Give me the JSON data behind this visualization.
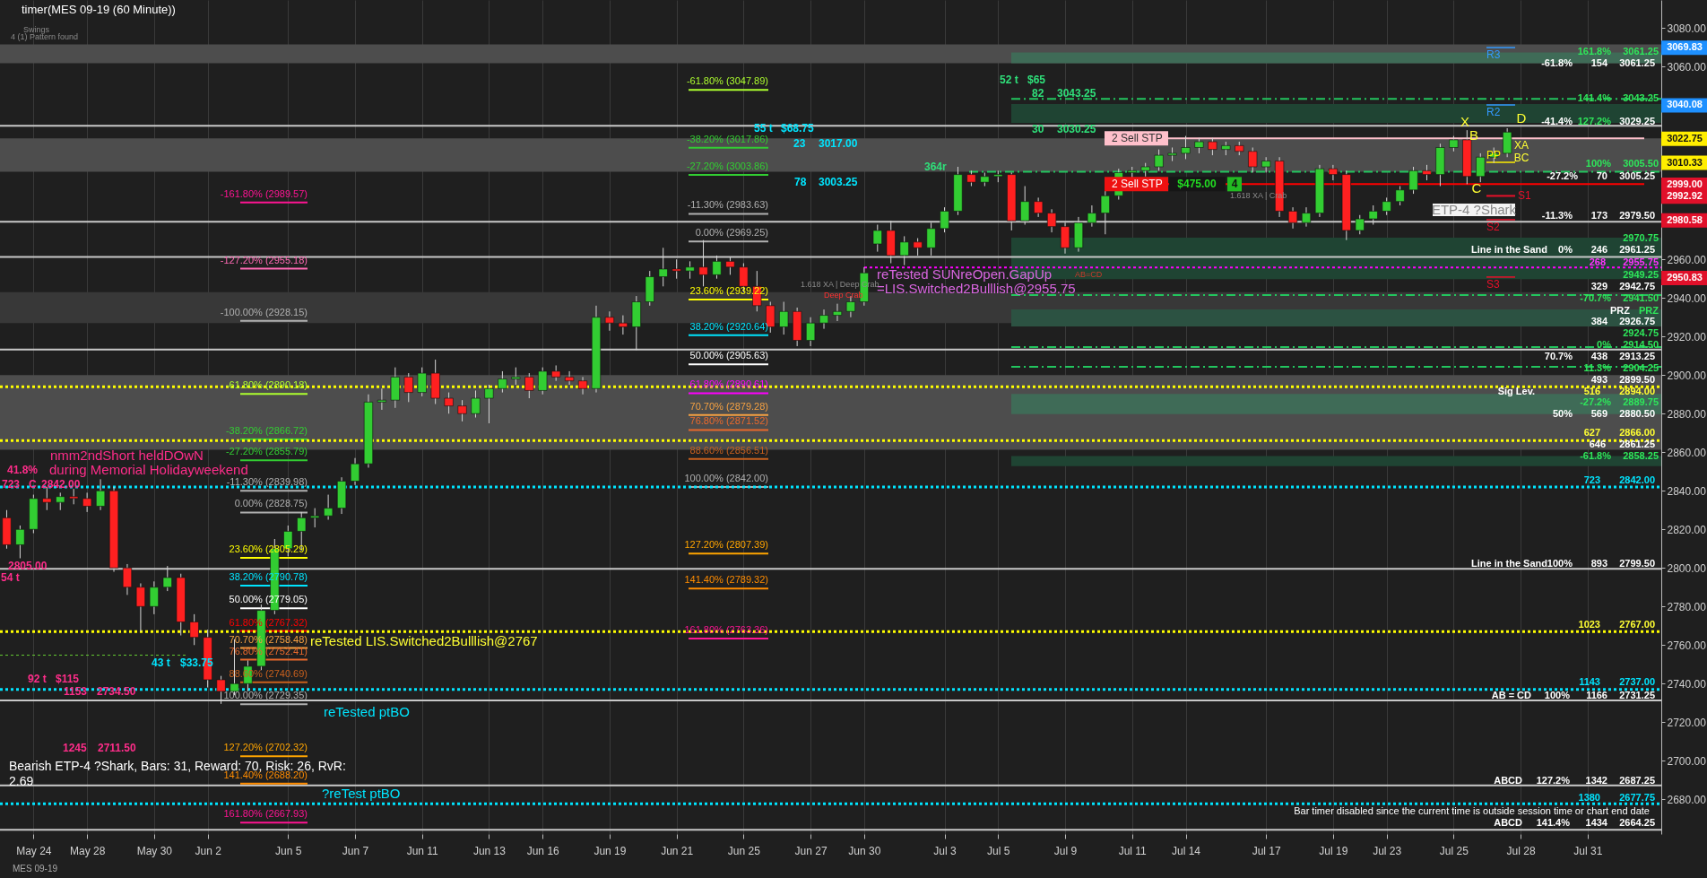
{
  "chart_data": {
    "type": "candlestick",
    "title": "timer(MES 09-19 (60 Minute))",
    "categories": [
      null,
      null,
      "May 24",
      null,
      null,
      null,
      "May 28",
      null,
      null,
      null,
      null,
      "May 30",
      null,
      null,
      null,
      "Jun 2",
      null,
      null,
      null,
      null,
      null,
      "Jun 5",
      null,
      null,
      null,
      null,
      "Jun 7",
      null,
      null,
      null,
      null,
      "Jun 11",
      null,
      null,
      null,
      null,
      "Jun 13",
      null,
      null,
      null,
      "Jun 16",
      null,
      null,
      null,
      null,
      "Jun 19",
      null,
      null,
      null,
      null,
      "Jun 21",
      null,
      null,
      null,
      null,
      "Jun 25",
      null,
      null,
      null,
      null,
      "Jun 27",
      null,
      null,
      null,
      "Jun 30",
      null,
      null,
      null,
      null,
      null,
      "Jul 3",
      null,
      null,
      null,
      "Jul 5",
      null,
      null,
      null,
      null,
      "Jul 9",
      null,
      null,
      null,
      null,
      "Jul 11",
      null,
      null,
      null,
      "Jul 14",
      null,
      null,
      null,
      null,
      null,
      "Jul 17",
      null,
      null,
      null,
      null,
      "Jul 19",
      null,
      null,
      null,
      "Jul 23",
      null,
      null,
      null,
      null,
      "Jul 25",
      null,
      null,
      null,
      null,
      "Jul 28",
      null,
      null,
      null,
      null,
      "Jul 31",
      null,
      null,
      null,
      null,
      null
    ],
    "ohlc": [
      [
        2826,
        2830,
        2810,
        2812
      ],
      [
        2812,
        2822,
        2805,
        2820
      ],
      [
        2820,
        2838,
        2818,
        2836
      ],
      [
        2836,
        2842,
        2830,
        2834
      ],
      [
        2834,
        2839,
        2830,
        2837
      ],
      [
        2837,
        2841,
        2833,
        2836
      ],
      [
        2836,
        2839,
        2829,
        2832
      ],
      [
        2832,
        2846,
        2830,
        2840
      ],
      [
        2840,
        2842,
        2798,
        2800
      ],
      [
        2800,
        2802,
        2786,
        2790
      ],
      [
        2790,
        2792,
        2767,
        2780
      ],
      [
        2780,
        2793,
        2776,
        2790
      ],
      [
        2790,
        2801,
        2788,
        2795
      ],
      [
        2795,
        2797,
        2765,
        2772
      ],
      [
        2772,
        2776,
        2760,
        2764
      ],
      [
        2764,
        2768,
        2738,
        2742
      ],
      [
        2742,
        2744,
        2729.5,
        2736
      ],
      [
        2736,
        2763,
        2734,
        2740
      ],
      [
        2740,
        2752,
        2736,
        2749
      ],
      [
        2749,
        2781,
        2747,
        2778
      ],
      [
        2778,
        2815,
        2776,
        2810
      ],
      [
        2810,
        2822,
        2806,
        2819
      ],
      [
        2819,
        2829,
        2809,
        2826
      ],
      [
        2826,
        2831,
        2821,
        2827
      ],
      [
        2827,
        2838,
        2825,
        2831
      ],
      [
        2831,
        2847,
        2828,
        2845
      ],
      [
        2845,
        2857,
        2843,
        2854
      ],
      [
        2854,
        2890,
        2852,
        2886
      ],
      [
        2886,
        2893,
        2882,
        2887
      ],
      [
        2887,
        2904,
        2883,
        2899
      ],
      [
        2899,
        2901,
        2886,
        2891
      ],
      [
        2891,
        2904,
        2889,
        2901
      ],
      [
        2901,
        2908,
        2885,
        2888
      ],
      [
        2888,
        2891,
        2880,
        2884
      ],
      [
        2884,
        2887,
        2876,
        2880
      ],
      [
        2880,
        2892,
        2878,
        2888
      ],
      [
        2888,
        2895,
        2875,
        2893
      ],
      [
        2893,
        2902,
        2891,
        2898
      ],
      [
        2898,
        2904,
        2895,
        2899
      ],
      [
        2899,
        2901,
        2888,
        2892
      ],
      [
        2892,
        2904,
        2890,
        2902
      ],
      [
        2902,
        2905,
        2897,
        2899
      ],
      [
        2899,
        2902,
        2895,
        2897
      ],
      [
        2897,
        2899,
        2890,
        2893
      ],
      [
        2893,
        2936,
        2891,
        2930
      ],
      [
        2930,
        2933,
        2923,
        2927
      ],
      [
        2927,
        2931,
        2921,
        2925
      ],
      [
        2925,
        2941,
        2913,
        2938
      ],
      [
        2938,
        2954,
        2936,
        2951
      ],
      [
        2951,
        2966,
        2946,
        2955
      ],
      [
        2955,
        2960,
        2950,
        2954
      ],
      [
        2954,
        2959,
        2950,
        2956
      ],
      [
        2956,
        2970,
        2946,
        2952
      ],
      [
        2952,
        2962,
        2950,
        2959
      ],
      [
        2959,
        2961,
        2952,
        2956
      ],
      [
        2956,
        2958,
        2943,
        2946
      ],
      [
        2946,
        2954,
        2933,
        2936
      ],
      [
        2936,
        2938,
        2922,
        2925
      ],
      [
        2925,
        2938,
        2921,
        2933
      ],
      [
        2933,
        2935,
        2915,
        2918
      ],
      [
        2918,
        2930,
        2915,
        2927
      ],
      [
        2927,
        2934,
        2924,
        2931
      ],
      [
        2931,
        2937,
        2928,
        2933
      ],
      [
        2933,
        2941,
        2930,
        2938
      ],
      [
        2938,
        2956,
        2936,
        2953
      ],
      [
        2968,
        2978,
        2964,
        2975
      ],
      [
        2975,
        2980,
        2958,
        2962
      ],
      [
        2962,
        2972,
        2957,
        2969
      ],
      [
        2969,
        2971,
        2962,
        2966
      ],
      [
        2966,
        2979,
        2962,
        2976
      ],
      [
        2976,
        2987,
        2974,
        2985
      ],
      [
        2985,
        3008,
        2983,
        3004
      ],
      [
        3004,
        3006,
        2998,
        3000
      ],
      [
        3000,
        3005,
        2998,
        3003
      ],
      [
        3003,
        3006,
        3000,
        3004
      ],
      [
        3004,
        3005,
        2975,
        2980
      ],
      [
        2980,
        2998,
        2978,
        2990
      ],
      [
        2990,
        2992,
        2982,
        2984
      ],
      [
        2984,
        2986,
        2974,
        2977
      ],
      [
        2977,
        2979,
        2963,
        2966
      ],
      [
        2966,
        2982,
        2964,
        2979
      ],
      [
        2979,
        2988,
        2977,
        2984
      ],
      [
        2984,
        2996,
        2973,
        2993
      ],
      [
        2993,
        3007,
        2991,
        3005
      ],
      [
        3005,
        3008,
        3002,
        3006
      ],
      [
        3006,
        3010,
        3003,
        3008
      ],
      [
        3008,
        3017,
        3006,
        3014
      ],
      [
        3014,
        3018,
        3011,
        3015
      ],
      [
        3015,
        3024,
        3012,
        3018
      ],
      [
        3018,
        3023,
        3015,
        3021
      ],
      [
        3021,
        3023,
        3014,
        3017
      ],
      [
        3017,
        3021,
        3014,
        3019
      ],
      [
        3019,
        3021,
        3014,
        3016
      ],
      [
        3016,
        3018,
        3005,
        3008
      ],
      [
        3008,
        3013,
        3005,
        3011
      ],
      [
        3011,
        3013,
        2982,
        2985
      ],
      [
        2985,
        2987,
        2976,
        2979
      ],
      [
        2979,
        2987,
        2977,
        2984
      ],
      [
        2984,
        3009,
        2982,
        3007
      ],
      [
        3007,
        3009,
        3001,
        3004
      ],
      [
        3004,
        3006,
        2970,
        2975
      ],
      [
        2975,
        2983,
        2973,
        2981
      ],
      [
        2981,
        2988,
        2978,
        2985
      ],
      [
        2985,
        2992,
        2983,
        2990
      ],
      [
        2990,
        2998,
        2988,
        2996
      ],
      [
        2996,
        3008,
        2994,
        3006
      ],
      [
        3006,
        3009,
        3001,
        3004
      ],
      [
        3004,
        3020,
        2998,
        3018
      ],
      [
        3018,
        3024,
        3016,
        3022
      ],
      [
        3022,
        3027,
        2999,
        3003
      ],
      [
        3003,
        3015,
        3000,
        3013
      ],
      [
        3013,
        3018,
        3010,
        3015
      ],
      [
        3015,
        3028,
        3013,
        3026
      ],
      null,
      null,
      null,
      null,
      null,
      null,
      null,
      null,
      null,
      null,
      null
    ],
    "colors": [
      "#ff2020",
      "#32cd32",
      "#32cd32",
      "#ff2020",
      "#32cd32",
      "#ff2020",
      "#ff2020",
      "#32cd32",
      "#ff2020",
      "#ff2020",
      "#ff2020",
      "#32cd32",
      "#32cd32",
      "#ff2020",
      "#ff2020",
      "#ff2020",
      "#ff2020",
      "#32cd32",
      "#32cd32",
      "#32cd32",
      "#32cd32",
      "#32cd32",
      "#32cd32",
      "#32cd32",
      "#32cd32",
      "#32cd32",
      "#32cd32",
      "#32cd32",
      "#32cd32",
      "#32cd32",
      "#ff2020",
      "#32cd32",
      "#ff2020",
      "#ff2020",
      "#ff2020",
      "#32cd32",
      "#32cd32",
      "#32cd32",
      "#32cd32",
      "#ff2020",
      "#32cd32",
      "#ff2020",
      "#ff2020",
      "#ff2020",
      "#32cd32",
      "#ff2020",
      "#ff2020",
      "#32cd32",
      "#32cd32",
      "#32cd32",
      "#ff2020",
      "#32cd32",
      "#ff2020",
      "#32cd32",
      "#ff2020",
      "#ff2020",
      "#ff2020",
      "#ff2020",
      "#32cd32",
      "#ff2020",
      "#32cd32",
      "#32cd32",
      "#32cd32",
      "#32cd32",
      "#32cd32",
      "#32cd32",
      "#ff2020",
      "#32cd32",
      "#ff2020",
      "#32cd32",
      "#32cd32",
      "#32cd32",
      "#ff2020",
      "#32cd32",
      "#32cd32",
      "#ff2020",
      "#32cd32",
      "#ff2020",
      "#ff2020",
      "#ff2020",
      "#32cd32",
      "#32cd32",
      "#32cd32",
      "#32cd32",
      "#32cd32",
      "#32cd32",
      "#32cd32",
      "#32cd32",
      "#32cd32",
      "#32cd32",
      "#ff2020",
      "#32cd32",
      "#ff2020",
      "#ff2020",
      "#32cd32",
      "#ff2020",
      "#ff2020",
      "#32cd32",
      "#32cd32",
      "#ff2020",
      "#ff2020",
      "#32cd32",
      "#32cd32",
      "#32cd32",
      "#32cd32",
      "#32cd32",
      "#ff2020",
      "#32cd32",
      "#32cd32",
      "#ff2020",
      "#32cd32",
      "#32cd32",
      "#32cd32",
      null,
      null,
      null,
      null,
      null,
      null,
      null,
      null,
      null,
      null,
      null
    ],
    "ylim": [
      2662,
      3094.5
    ],
    "yticks": [
      {
        "value": 2680,
        "label": "2680.00"
      },
      {
        "value": 2700,
        "label": "2700.00"
      },
      {
        "value": 2720,
        "label": "2720.00"
      },
      {
        "value": 2740,
        "label": "2740.00"
      },
      {
        "value": 2760,
        "label": "2760.00"
      },
      {
        "value": 2780,
        "label": "2780.00"
      },
      {
        "value": 2800,
        "label": "2800.00"
      },
      {
        "value": 2820,
        "label": "2820.00"
      },
      {
        "value": 2840,
        "label": "2840.00"
      },
      {
        "value": 2860,
        "label": "2860.00"
      },
      {
        "value": 2880,
        "label": "2880.00"
      },
      {
        "value": 2900,
        "label": "2900.00"
      },
      {
        "value": 2920,
        "label": "2920.00"
      },
      {
        "value": 2940,
        "label": "2940.00"
      },
      {
        "value": 2960,
        "label": "2960.00"
      },
      {
        "value": 2980,
        "label": null
      },
      {
        "value": 3000,
        "label": null
      },
      {
        "value": 3020,
        "label": null
      },
      {
        "value": 3040,
        "label": null
      },
      {
        "value": 3060,
        "label": "3060.00"
      },
      {
        "value": 3080,
        "label": "3080.00"
      }
    ],
    "grid": "x",
    "bands": [
      {
        "axis": "y",
        "from": 3061.75,
        "to": 3071.5,
        "color": "#4d4d4d"
      },
      {
        "axis": "y",
        "from": 3005.5,
        "to": 3022.75,
        "color": "#4d4d4d"
      },
      {
        "axis": "y",
        "from": 2927,
        "to": 2943,
        "color": "#383838"
      },
      {
        "axis": "y",
        "from": 2861.25,
        "to": 2900,
        "color": "#4d4d4d"
      },
      {
        "axis": "y",
        "from": 3061.75,
        "to": 3067.25,
        "color": "#3f6b57"
      },
      {
        "axis": "y",
        "from": 3030.75,
        "to": 3040.5,
        "color": "#1f4433"
      },
      {
        "axis": "y",
        "from": 2949.75,
        "to": 2971.25,
        "color": "#1f4433"
      },
      {
        "axis": "y",
        "from": 2925.25,
        "to": 2934,
        "color": "#2c5242"
      },
      {
        "axis": "y",
        "from": 2879.75,
        "to": 2890.25,
        "color": "#3f6b57"
      },
      {
        "axis": "y",
        "from": 2852.75,
        "to": 2858,
        "color": "#1f4433"
      }
    ],
    "ref_lines": [
      {
        "axis": "y",
        "value": 3029.25,
        "color": "#c8c8c8",
        "line_style": "solid"
      },
      {
        "axis": "y",
        "value": 2979.5,
        "color": "#c8c8c8",
        "line_style": "solid"
      },
      {
        "axis": "y",
        "value": 2961.25,
        "color": "#c8c8c8",
        "line_style": "solid"
      },
      {
        "axis": "y",
        "value": 2913.25,
        "color": "#c8c8c8",
        "line_style": "solid"
      },
      {
        "axis": "y",
        "value": 2799.5,
        "color": "#c8c8c8",
        "line_style": "solid"
      },
      {
        "axis": "y",
        "value": 2731.25,
        "color": "#c8c8c8",
        "line_style": "solid"
      },
      {
        "axis": "y",
        "value": 2687.25,
        "color": "#c8c8c8",
        "line_style": "solid"
      },
      {
        "axis": "y",
        "value": 2664.25,
        "color": "#c8c8c8",
        "line_style": "solid"
      },
      {
        "axis": "y",
        "value": 2894,
        "color": "#ffff00",
        "line_style": "dotted"
      },
      {
        "axis": "y",
        "value": 2866,
        "color": "#ffff00",
        "line_style": "dotted"
      },
      {
        "axis": "y",
        "value": 2767,
        "color": "#ffff00",
        "line_style": "dotted"
      },
      {
        "axis": "y",
        "value": 2842,
        "color": "#00e5ff",
        "line_style": "dotted"
      },
      {
        "axis": "y",
        "value": 2737,
        "color": "#00e5ff",
        "line_style": "dotted"
      },
      {
        "axis": "y",
        "value": 2677.75,
        "color": "#00e5ff",
        "line_style": "dotted"
      },
      {
        "axis": "y",
        "value": 2955.75,
        "color": "#ff00ff",
        "line_style": "dotted"
      },
      {
        "axis": "y",
        "value": 3043.25,
        "color": "#22c55e",
        "line_style": "dashed"
      },
      {
        "axis": "y",
        "value": 3005.5,
        "color": "#22c55e",
        "line_style": "dashed"
      },
      {
        "axis": "y",
        "value": 2941.5,
        "color": "#22c55e",
        "line_style": "dashed"
      },
      {
        "axis": "y",
        "value": 2914.5,
        "color": "#22c55e",
        "line_style": "dashed"
      },
      {
        "axis": "y",
        "value": 2904.25,
        "color": "#22c55e",
        "line_style": "dashed"
      },
      {
        "axis": "y",
        "value": 3022.75,
        "color": "#ffc0cb",
        "line_style": "solid"
      },
      {
        "axis": "y",
        "value": 2999,
        "color": "#ff0000",
        "line_style": "solid"
      },
      {
        "axis": "y",
        "value": 2754.75,
        "color": "#66cc33",
        "line_style": "dotted"
      },
      {
        "axis": "y",
        "value": 3069.83,
        "color": "#3399ff",
        "line_style": "solid",
        "label": "R3"
      },
      {
        "axis": "y",
        "value": 3040.08,
        "color": "#3399ff",
        "line_style": "solid",
        "label": "R2"
      },
      {
        "axis": "y",
        "value": 3010.33,
        "color": "#ffee00",
        "line_style": "solid",
        "label": "PP"
      },
      {
        "axis": "y",
        "value": 2992.92,
        "color": "#e8102a",
        "line_style": "solid",
        "label": "S1"
      },
      {
        "axis": "y",
        "value": 2980.58,
        "color": "#e8102a",
        "line_style": "solid",
        "label": "S2"
      },
      {
        "axis": "y",
        "value": 2950.83,
        "color": "#e8102a",
        "line_style": "solid",
        "label": "S3"
      },
      {
        "axis": "y",
        "value": 2989.57,
        "color": "#ff1493",
        "line_style": "solid",
        "label": "-161.80% (2989.57)"
      },
      {
        "axis": "y",
        "value": 2955.18,
        "color": "#ff69b4",
        "line_style": "solid",
        "label": "-127.20% (2955.18)"
      },
      {
        "axis": "y",
        "value": 2928.15,
        "color": "#b0b0b0",
        "line_style": "solid",
        "label": "-100.00% (2928.15)"
      },
      {
        "axis": "y",
        "value": 2890.18,
        "color": "#adff2f",
        "line_style": "solid",
        "label": "-61.80% (2890.18)"
      },
      {
        "axis": "y",
        "value": 2866.72,
        "color": "#32cd32",
        "line_style": "solid",
        "label": "-38.20% (2866.72)"
      },
      {
        "axis": "y",
        "value": 2855.79,
        "color": "#32cd32",
        "line_style": "solid",
        "label": "-27.20% (2855.79)"
      },
      {
        "axis": "y",
        "value": 2839.98,
        "color": "#b0b0b0",
        "line_style": "solid",
        "label": "-11.30% (2839.98)"
      },
      {
        "axis": "y",
        "value": 2828.75,
        "color": "#b0b0b0",
        "line_style": "solid",
        "label": "0.00% (2828.75)"
      },
      {
        "axis": "y",
        "value": 2805.29,
        "color": "#ffff00",
        "line_style": "solid",
        "label": "23.60% (2805.29)"
      },
      {
        "axis": "y",
        "value": 2790.78,
        "color": "#00e5ff",
        "line_style": "solid",
        "label": "38.20% (2790.78)"
      },
      {
        "axis": "y",
        "value": 2779.05,
        "color": "#ffffff",
        "line_style": "solid",
        "label": "50.00% (2779.05)"
      },
      {
        "axis": "y",
        "value": 2767.32,
        "color": "#ff0000",
        "line_style": "solid",
        "label": "61.80% (2767.32)"
      },
      {
        "axis": "y",
        "value": 2758.48,
        "color": "#f5a142",
        "line_style": "solid",
        "label": "70.70% (2758.48)"
      },
      {
        "axis": "y",
        "value": 2752.41,
        "color": "#e9692c",
        "line_style": "solid",
        "label": "76.80% (2752.41)"
      },
      {
        "axis": "y",
        "value": 2740.69,
        "color": "#c8601e",
        "line_style": "solid",
        "label": "88.60% (2740.69)"
      },
      {
        "axis": "y",
        "value": 2729.35,
        "color": "#b0b0b0",
        "line_style": "solid",
        "label": "100.00% (2729.35)"
      },
      {
        "axis": "y",
        "value": 2702.32,
        "color": "#ffa500",
        "line_style": "solid",
        "label": "127.20% (2702.32)"
      },
      {
        "axis": "y",
        "value": 2688.2,
        "color": "#ff8c00",
        "line_style": "solid",
        "label": "141.40% (2688.20)"
      },
      {
        "axis": "y",
        "value": 2667.93,
        "color": "#ff1493",
        "line_style": "solid",
        "label": "161.80% (2667.93)"
      },
      {
        "axis": "y",
        "value": 3047.89,
        "color": "#adff2f",
        "line_style": "solid",
        "label": "-61.80% (3047.89)"
      },
      {
        "axis": "y",
        "value": 3017.86,
        "color": "#32cd32",
        "line_style": "solid",
        "label": "-38.20% (3017.86)"
      },
      {
        "axis": "y",
        "value": 3003.86,
        "color": "#32cd32",
        "line_style": "solid",
        "label": "-27.20% (3003.86)"
      },
      {
        "axis": "y",
        "value": 2983.63,
        "color": "#b0b0b0",
        "line_style": "solid",
        "label": "-11.30% (2983.63)"
      },
      {
        "axis": "y",
        "value": 2969.25,
        "color": "#b0b0b0",
        "line_style": "solid",
        "label": "0.00% (2969.25)"
      },
      {
        "axis": "y",
        "value": 2939.22,
        "color": "#ffff00",
        "line_style": "solid",
        "label": "23.60% (2939.22)"
      },
      {
        "axis": "y",
        "value": 2920.64,
        "color": "#00e5ff",
        "line_style": "solid",
        "label": "38.20% (2920.64)"
      },
      {
        "axis": "y",
        "value": 2905.63,
        "color": "#ffffff",
        "line_style": "solid",
        "label": "50.00% (2905.63)"
      },
      {
        "axis": "y",
        "value": 2890.61,
        "color": "#ff00ff",
        "line_style": "solid",
        "label": "61.80% (2890.61)"
      },
      {
        "axis": "y",
        "value": 2879.28,
        "color": "#f5a142",
        "line_style": "solid",
        "label": "70.70% (2879.28)"
      },
      {
        "axis": "y",
        "value": 2871.52,
        "color": "#e9692c",
        "line_style": "solid",
        "label": "76.80% (2871.52)"
      },
      {
        "axis": "y",
        "value": 2856.51,
        "color": "#c8601e",
        "line_style": "solid",
        "label": "88.60% (2856.51)"
      },
      {
        "axis": "y",
        "value": 2842.0,
        "color": "#b0b0b0",
        "line_style": "solid",
        "label": "100.00% (2842.00)"
      },
      {
        "axis": "y",
        "value": 2807.39,
        "color": "#ffa500",
        "line_style": "solid",
        "label": "127.20% (2807.39)"
      },
      {
        "axis": "y",
        "value": 2789.32,
        "color": "#ff8c00",
        "line_style": "solid",
        "label": "141.40% (2789.32)"
      },
      {
        "axis": "y",
        "value": 2763.36,
        "color": "#ff1493",
        "line_style": "solid",
        "label": "161.80% (2763.36)"
      }
    ],
    "annotations": [
      "Swings",
      "4 (1) Pattern found",
      "nmm2ndShort heldDOwN",
      "during Memorial Holidayweekend",
      "41.8%",
      "723",
      "C",
      "2842.00",
      "2805.00",
      "54 t",
      "92 t",
      "$115",
      "1153",
      "2734.50",
      "1245",
      "2711.50",
      "43 t",
      "$33.75",
      "Bearish ETP-4 ?Shark, Bars: 31, Reward: 70, Risk: 26, RvR:",
      "2.69",
      "reTested LIS.Switched2Bulllish@2767",
      "reTested ptBO",
      "?reTest ptBO",
      "reTested SUNreOpen.GapUp",
      "=LIS.Switched2Bulllish@2955.75",
      "1.618 XA | Deep Crab",
      "Deep Crab",
      "AB=CD",
      "1.618 XA | Crab",
      "55 t",
      "$68.75",
      "23",
      "3017.00",
      "78",
      "3003.25",
      "52 t",
      "$65",
      "82",
      "3043.25",
      "30",
      "3030.25",
      "364r",
      {
        "text": "2 Sell STP",
        "y": 3022.75
      },
      {
        "text": "2 Sell STP",
        "y": 2999
      },
      {
        "text": "$475.00",
        "y": 2999
      },
      {
        "text": "4",
        "y": 2999
      },
      "X",
      "B",
      "C",
      "D",
      "XA",
      "BC",
      "ETP-4 ?Shark",
      {
        "text": "161.8%",
        "y": 3061.25
      },
      {
        "text": "3061.25",
        "y": 3061.25
      },
      {
        "text": "-61.8%",
        "y": 3061.25
      },
      {
        "text": "154",
        "y": 3061.25
      },
      {
        "text": "3061.25",
        "y": 3061.25
      },
      {
        "text": "141.4%",
        "y": 3043.25
      },
      {
        "text": "3043.25",
        "y": 3043.25
      },
      {
        "text": "-41.4%",
        "y": 3029.25
      },
      {
        "text": "127.2%",
        "y": 3029.25
      },
      {
        "text": "3029.25",
        "y": 3029.25
      },
      {
        "text": "100%",
        "y": 3005.5
      },
      {
        "text": "3005.50",
        "y": 3005.5
      },
      {
        "text": "-27.2%",
        "y": 3005.25
      },
      {
        "text": "70",
        "y": 3005.25
      },
      {
        "text": "3005.25",
        "y": 3005.25
      },
      {
        "text": "-11.3%",
        "y": 2979.5
      },
      {
        "text": "173",
        "y": 2979.5
      },
      {
        "text": "2979.50",
        "y": 2979.5
      },
      {
        "text": "2970.75",
        "y": 2970.75
      },
      {
        "text": "Line in the Sand",
        "y": 2961.25
      },
      {
        "text": "0%",
        "y": 2961.25
      },
      {
        "text": "246",
        "y": 2961.25
      },
      {
        "text": "2961.25",
        "y": 2961.25
      },
      {
        "text": "268",
        "y": 2955.75
      },
      {
        "text": "2955.75",
        "y": 2955.75
      },
      {
        "text": "2949.25",
        "y": 2949.25
      },
      {
        "text": "329",
        "y": 2942.75
      },
      {
        "text": "2942.75",
        "y": 2942.75
      },
      {
        "text": "-70.7%",
        "y": 2941.5
      },
      {
        "text": "2941.50",
        "y": 2941.5
      },
      "PRZ",
      "PRZ",
      {
        "text": "384",
        "y": 2926.75
      },
      {
        "text": "2926.75",
        "y": 2926.75
      },
      {
        "text": "2924.75",
        "y": 2924.75
      },
      {
        "text": "0%",
        "y": 2914.5
      },
      {
        "text": "2914.50",
        "y": 2914.5
      },
      {
        "text": "70.7%",
        "y": 2913.25
      },
      {
        "text": "438",
        "y": 2913.25
      },
      {
        "text": "2913.25",
        "y": 2913.25
      },
      {
        "text": "11.3%",
        "y": 2904.25
      },
      {
        "text": "2904.25",
        "y": 2904.25
      },
      {
        "text": "493",
        "y": 2899.5
      },
      {
        "text": "2899.50",
        "y": 2899.5
      },
      {
        "text": "Sig Lev.",
        "y": 2894
      },
      {
        "text": "516",
        "y": 2894
      },
      {
        "text": "2894.00",
        "y": 2894
      },
      {
        "text": "-27.2%",
        "y": 2889.75
      },
      {
        "text": "2889.75",
        "y": 2889.75
      },
      {
        "text": "50%",
        "y": 2880.5
      },
      {
        "text": "569",
        "y": 2880.5
      },
      {
        "text": "2880.50",
        "y": 2880.5
      },
      {
        "text": "627",
        "y": 2866
      },
      {
        "text": "2866.00",
        "y": 2866
      },
      {
        "text": "646",
        "y": 2861.25
      },
      {
        "text": "2861.25",
        "y": 2861.25
      },
      {
        "text": "-61.8%",
        "y": 2858.25
      },
      {
        "text": "2858.25",
        "y": 2858.25
      },
      {
        "text": "723",
        "y": 2842
      },
      {
        "text": "2842.00",
        "y": 2842
      },
      {
        "text": "Line in the Sand",
        "y": 2799.5
      },
      {
        "text": "100%",
        "y": 2799.5
      },
      {
        "text": "893",
        "y": 2799.5
      },
      {
        "text": "2799.50",
        "y": 2799.5
      },
      {
        "text": "1023",
        "y": 2767
      },
      {
        "text": "2767.00",
        "y": 2767
      },
      {
        "text": "1143",
        "y": 2737
      },
      {
        "text": "2737.00",
        "y": 2737
      },
      {
        "text": "AB = CD",
        "y": 2731.25
      },
      {
        "text": "100%",
        "y": 2731.25
      },
      {
        "text": "1166",
        "y": 2731.25
      },
      {
        "text": "2731.25",
        "y": 2731.25
      },
      {
        "text": "ABCD",
        "y": 2687.25
      },
      {
        "text": "127.2%",
        "y": 2687.25
      },
      {
        "text": "1342",
        "y": 2687.25
      },
      {
        "text": "2687.25",
        "y": 2687.25
      },
      {
        "text": "1380",
        "y": 2677.75
      },
      {
        "text": "2677.75",
        "y": 2677.75
      },
      "Bar timer disabled since the current time is outside session time or chart end date",
      {
        "text": "ABCD",
        "y": 2664.25
      },
      {
        "text": "141.4%",
        "y": 2664.25
      },
      {
        "text": "1434",
        "y": 2664.25
      },
      {
        "text": "2664.25",
        "y": 2664.25
      },
      "3069.83",
      "3040.08",
      "3022.75",
      "3010.33",
      "2999.00",
      "2992.92",
      "2980.58",
      "2950.83",
      "MES 09-19"
    ]
  }
}
